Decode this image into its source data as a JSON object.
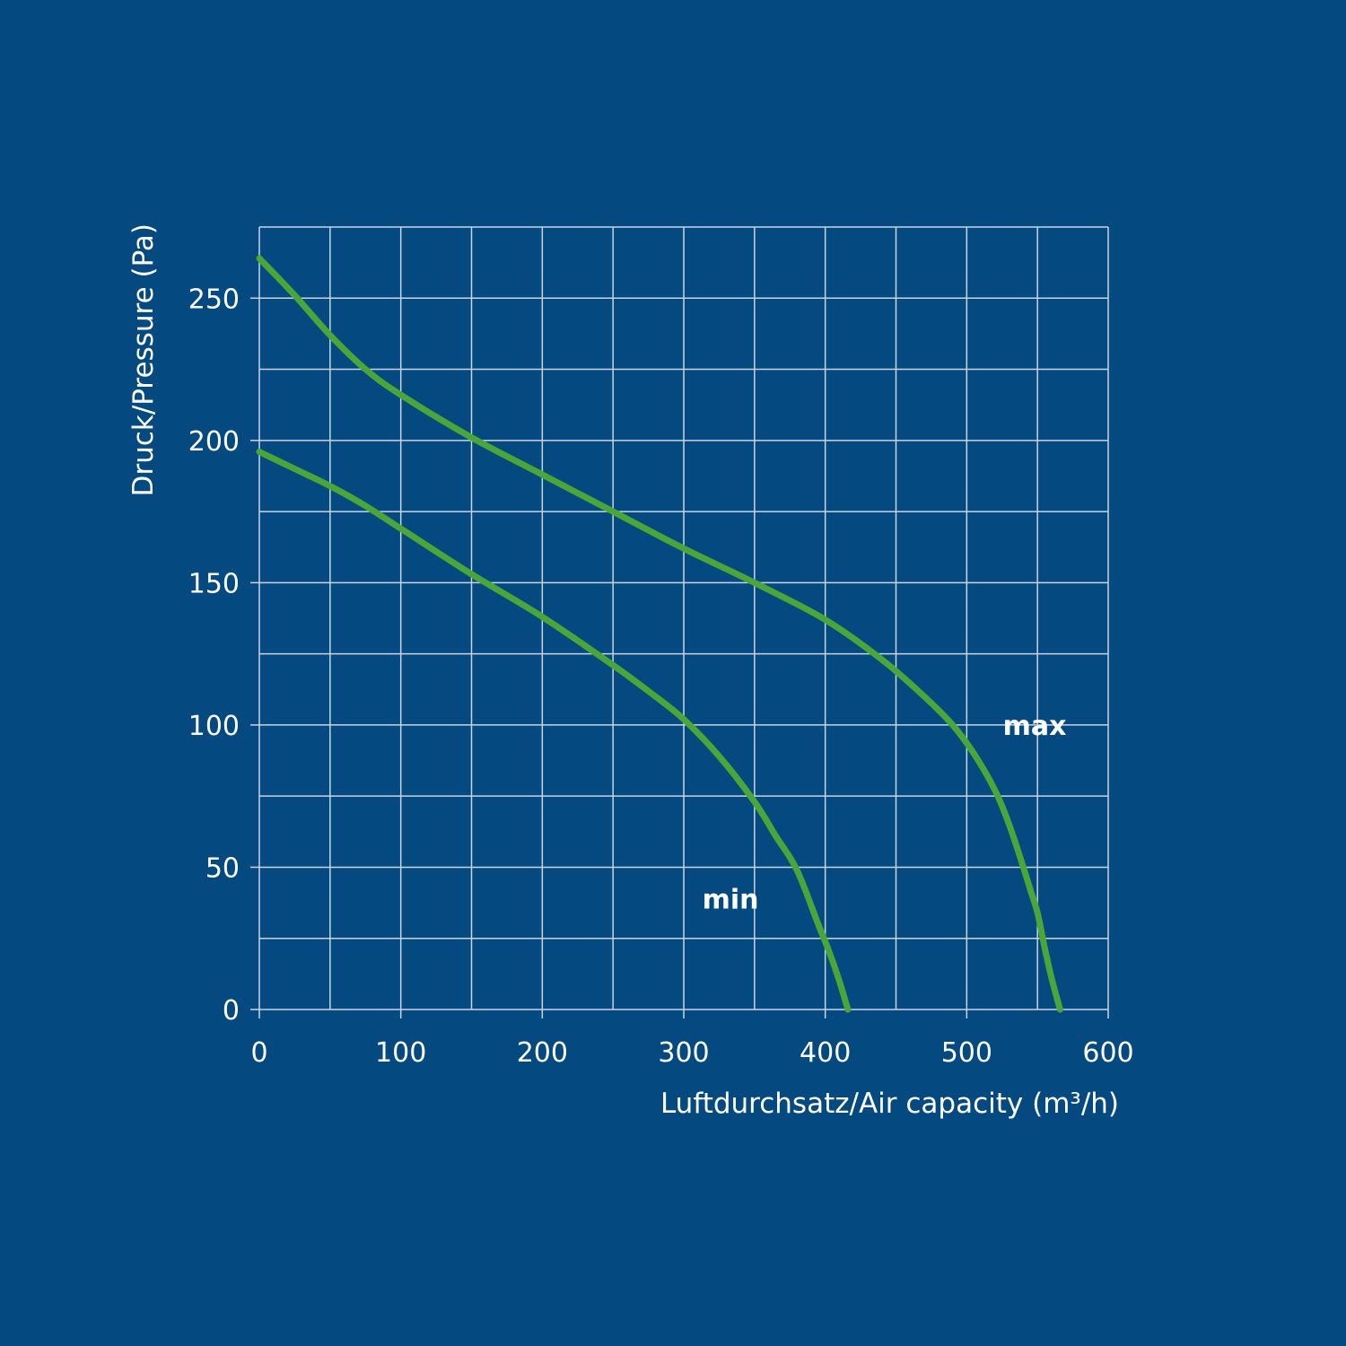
{
  "colors": {
    "background": "#044a80",
    "grid": "#c8d4e2",
    "curve": "#4ba63a",
    "text": "#ffffff"
  },
  "chart_data": {
    "type": "line",
    "xlabel": "Luftdurchsatz/Air capacity (m³/h)",
    "ylabel": "Druck/Pressure (Pa)",
    "xlim": [
      0,
      600
    ],
    "ylim": [
      0,
      275
    ],
    "x_ticks": [
      "0",
      "100",
      "200",
      "300",
      "400",
      "500",
      "600"
    ],
    "y_ticks": [
      "0",
      "50",
      "100",
      "150",
      "200",
      "250"
    ],
    "x_tick_values": [
      0,
      100,
      200,
      300,
      400,
      500,
      600
    ],
    "y_tick_values": [
      0,
      50,
      100,
      150,
      200,
      250
    ],
    "x_grid_step": 50,
    "y_grid_step": 25,
    "grid": true,
    "series": [
      {
        "name": "max",
        "x": [
          0,
          25,
          50,
          75,
          100,
          150,
          200,
          250,
          300,
          350,
          400,
          440,
          470,
          490,
          505,
          520,
          530,
          540,
          545,
          550,
          555,
          560,
          566
        ],
        "y": [
          264,
          251,
          237,
          225,
          216,
          201,
          188,
          175,
          162,
          150,
          137,
          123,
          110,
          100,
          90,
          77,
          65,
          50,
          42,
          34,
          22,
          11,
          0
        ]
      },
      {
        "name": "min",
        "x": [
          0,
          25,
          50,
          75,
          100,
          150,
          200,
          250,
          280,
          300,
          325,
          350,
          365,
          380,
          395,
          403,
          410,
          416
        ],
        "y": [
          196,
          190,
          184,
          177,
          169,
          153,
          138,
          121,
          110,
          102,
          89,
          73,
          61,
          49,
          30,
          20,
          10,
          0
        ]
      }
    ]
  }
}
